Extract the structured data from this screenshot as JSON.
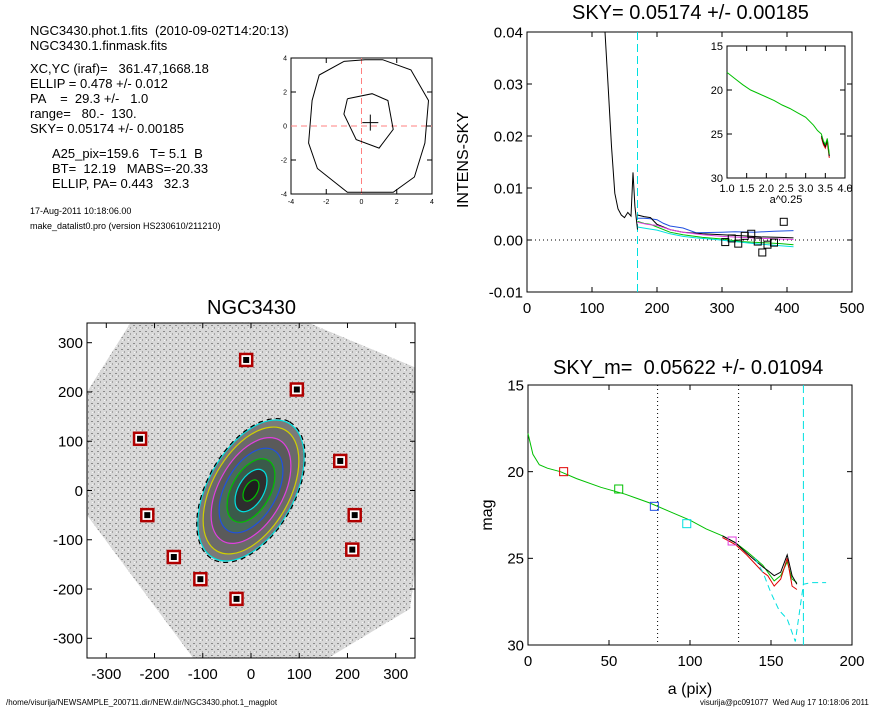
{
  "header": {
    "line1": "NGC3430.phot.1.fits  (2010-09-02T14:20:13)",
    "line2": "NGC3430.1.finmask.fits",
    "xcyc": "XC,YC (iraf)=   361.47,1668.18",
    "ellip": "ELLIP = 0.478 +/- 0.012",
    "pa": "PA    =  29.3 +/-   1.0",
    "range": "range=   80.-  130.",
    "sky": "SKY= 0.05174 +/- 0.00185",
    "a25": "A25_pix=159.6   T= 5.1  B",
    "bt": "BT=  12.19   MABS=-20.33",
    "ellip_pa": "ELLIP, PA= 0.443   32.3",
    "date": "17-Aug-2011 10:18:06.00",
    "prog": "make_datalist0.pro (version HS230610/211210)"
  },
  "footer": {
    "path": "/home/visurija/NEWSAMPLE_200711.dir/NEW.dir/NGC3430.phot.1_magplot",
    "user": "visurija@pc091077  Wed Aug 17 10:18:06 2011"
  },
  "colors": {
    "black": "#000000",
    "red": "#e00000",
    "green": "#00c000",
    "blue": "#2050e0",
    "cyan": "#00e0e0",
    "magenta": "#e040e0",
    "dashed_red": "#ff8080",
    "image_bg": "#c0c0c0",
    "box": "#b00000"
  },
  "chart_data": [
    {
      "id": "center-contour",
      "type": "scatter",
      "title": "",
      "xlabel": "",
      "ylabel": "",
      "xlim": [
        -4,
        4
      ],
      "ylim": [
        -4,
        4
      ],
      "xticks": [
        "-4",
        "-2",
        "0",
        "2",
        "4"
      ],
      "yticks": [
        "-4",
        "-2",
        "0",
        "2",
        "4"
      ],
      "center": [
        0.5,
        0.2
      ],
      "crosshair": [
        0,
        0
      ]
    },
    {
      "id": "sky-profile",
      "type": "line",
      "title": "SKY= 0.05174 +/- 0.00185",
      "xlabel": "",
      "ylabel": "INTENS-SKY",
      "xlim": [
        0,
        500
      ],
      "ylim": [
        -0.01,
        0.04
      ],
      "xticks": [
        "0",
        "100",
        "200",
        "300",
        "400",
        "500"
      ],
      "yticks": [
        "-0.01",
        "0.00",
        "0.01",
        "0.02",
        "0.03",
        "0.04"
      ],
      "vline_x": 170,
      "series": [
        {
          "color": "black",
          "x": [
            120,
            125,
            130,
            135,
            140,
            145,
            150,
            155,
            160,
            163,
            166,
            170
          ],
          "y": [
            0.04,
            0.029,
            0.018,
            0.009,
            0.006,
            0.0048,
            0.0043,
            0.0053,
            0.0046,
            0.013,
            0.0065,
            0.002
          ]
        },
        {
          "color": "blue",
          "x": [
            170,
            180,
            190,
            200,
            210,
            220,
            240,
            260,
            300,
            320,
            350,
            380,
            410
          ],
          "y": [
            0.0042,
            0.0042,
            0.0041,
            0.0039,
            0.0032,
            0.0027,
            0.0023,
            0.0014,
            0.0015,
            0.0016,
            0.0015,
            0.0017,
            0.0018
          ]
        },
        {
          "color": "black",
          "x": [
            170,
            180,
            190,
            200,
            220,
            240,
            270,
            300,
            330,
            360,
            390,
            410
          ],
          "y": [
            0.0048,
            0.0045,
            0.0043,
            0.003,
            0.002,
            0.0015,
            0.0012,
            0.001,
            0.0008,
            0.0006,
            0.0005,
            0.0004
          ]
        },
        {
          "color": "green",
          "x": [
            170,
            180,
            190,
            200,
            220,
            240,
            270,
            300,
            330,
            360,
            390,
            410
          ],
          "y": [
            0.0036,
            0.0032,
            0.003,
            0.0025,
            0.0015,
            0.001,
            0.0005,
            0.0002,
            -0.0003,
            -0.0005,
            -0.0007,
            -0.0009
          ]
        },
        {
          "color": "cyan",
          "x": [
            170,
            185,
            200,
            220,
            240,
            260,
            290,
            320,
            350,
            380,
            410
          ],
          "y": [
            0.0025,
            0.0022,
            0.0019,
            0.0012,
            0.0007,
            0.0004,
            0.0001,
            -0.0003,
            -0.0007,
            -0.001,
            -0.0013
          ]
        },
        {
          "color": "magenta",
          "x": [
            170,
            185,
            200,
            220,
            240,
            270,
            300,
            330,
            360,
            390,
            410
          ],
          "y": [
            0.0034,
            0.003,
            0.0028,
            0.002,
            0.0015,
            0.001,
            0.0007,
            0.0005,
            0.0003,
            0.0002,
            0.0001
          ]
        }
      ],
      "sky_points": {
        "x": [
          305,
          315,
          325,
          335,
          345,
          355,
          362,
          370,
          380,
          395
        ],
        "y": [
          -0.0004,
          0.0003,
          -0.0007,
          0.0008,
          0.0012,
          -0.0003,
          -0.0024,
          -0.0009,
          -0.0005,
          0.0035
        ]
      },
      "inset": {
        "xlabel": "a^0.25",
        "xlim": [
          1.0,
          4.0
        ],
        "ylim": [
          30,
          15
        ],
        "xticks": [
          "1.0",
          "1.5",
          "2.0",
          "2.5",
          "3.0",
          "3.5",
          "4.0"
        ],
        "yticks": [
          "15",
          "20",
          "25",
          "30"
        ],
        "x": [
          1.0,
          1.2,
          1.4,
          1.6,
          1.8,
          2.0,
          2.2,
          2.4,
          2.6,
          2.8,
          3.0,
          3.2,
          3.3,
          3.4,
          3.45,
          3.5,
          3.55,
          3.6
        ],
        "y": [
          18.0,
          18.7,
          19.4,
          20.0,
          20.4,
          20.8,
          21.2,
          21.7,
          22.1,
          22.6,
          23.1,
          24.0,
          24.6,
          25.0,
          25.8,
          26.2,
          25.5,
          27.3
        ]
      }
    },
    {
      "id": "galaxy-image",
      "type": "scatter",
      "title": "NGC3430",
      "xlabel": "",
      "ylabel": "",
      "xlim": [
        -340,
        340
      ],
      "ylim": [
        -340,
        340
      ],
      "xticks": [
        "-300",
        "-200",
        "-100",
        "0",
        "100",
        "200",
        "300"
      ],
      "yticks": [
        "-300",
        "-200",
        "-100",
        "0",
        "100",
        "200",
        "300"
      ],
      "ellipse": {
        "cx": 0,
        "cy": 0,
        "a": 160,
        "b": 89,
        "pa_deg": 29.3
      },
      "star_boxes": {
        "x": [
          -10,
          95,
          -230,
          185,
          -215,
          215,
          -160,
          210,
          -105,
          -30
        ],
        "y": [
          265,
          205,
          105,
          60,
          -50,
          -50,
          -135,
          -120,
          -180,
          -220
        ]
      }
    },
    {
      "id": "mag-profile",
      "type": "line",
      "title": "SKY_m=  0.05622 +/- 0.01094",
      "xlabel": "a (pix)",
      "ylabel": "mag",
      "xlim": [
        0,
        200
      ],
      "ylim": [
        30,
        15
      ],
      "xticks": [
        "0",
        "50",
        "100",
        "150",
        "200"
      ],
      "yticks": [
        "15",
        "20",
        "25",
        "30"
      ],
      "vlines_dotted": [
        80,
        130
      ],
      "vline_dashed": 170,
      "series": [
        {
          "color": "green",
          "x": [
            0,
            3,
            7,
            12,
            20,
            30,
            45,
            60,
            75,
            90,
            100,
            110,
            120,
            128,
            135,
            140,
            145,
            148,
            152,
            156,
            160,
            163,
            166
          ],
          "y": [
            17.8,
            19.0,
            19.6,
            19.8,
            20.0,
            20.4,
            20.9,
            21.3,
            21.8,
            22.4,
            22.8,
            23.3,
            23.7,
            24.1,
            24.6,
            25.0,
            25.4,
            25.8,
            26.3,
            26.0,
            25.2,
            26.2,
            26.4
          ]
        },
        {
          "color": "red",
          "x": [
            120,
            128,
            135,
            140,
            145,
            148,
            152,
            156,
            160,
            163,
            166
          ],
          "y": [
            23.8,
            24.2,
            24.8,
            25.3,
            25.8,
            26.0,
            26.6,
            26.2,
            25.0,
            26.6,
            26.8
          ]
        },
        {
          "color": "black",
          "x": [
            120,
            128,
            135,
            140,
            145,
            148,
            152,
            156,
            160,
            163,
            166
          ],
          "y": [
            23.7,
            24.1,
            24.7,
            25.1,
            25.5,
            25.7,
            26.0,
            25.8,
            24.8,
            26.0,
            26.5
          ]
        },
        {
          "color": "cyan",
          "x": [
            140,
            145,
            150,
            155,
            160,
            165,
            170,
            175,
            180,
            184
          ],
          "y": [
            25.0,
            25.8,
            27.0,
            28.0,
            28.5,
            29.8,
            26.5,
            26.4,
            26.4,
            26.4
          ]
        }
      ],
      "box_points": {
        "x": [
          22,
          56,
          78,
          98,
          126
        ],
        "y": [
          20.0,
          21.0,
          22.0,
          23.0,
          24.0
        ],
        "colors": [
          "red",
          "green",
          "blue",
          "cyan",
          "magenta"
        ]
      }
    }
  ]
}
